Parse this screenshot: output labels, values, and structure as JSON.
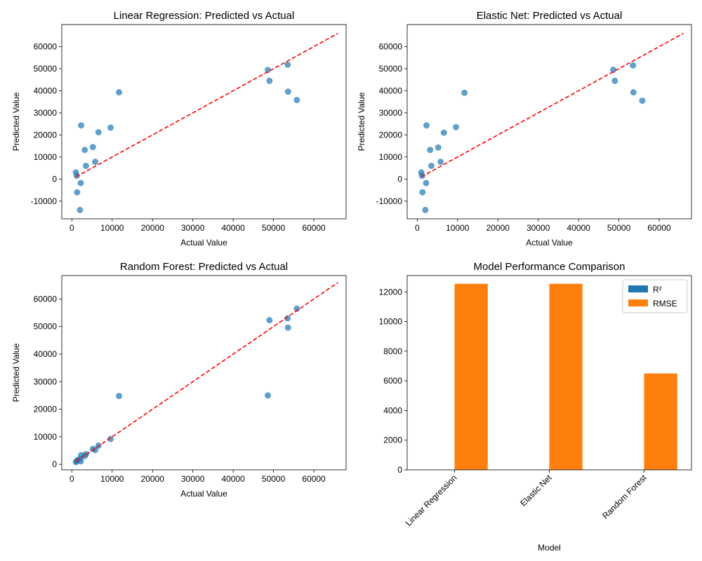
{
  "colors": {
    "points": "#1f77b4",
    "diagonal": "#ff0000",
    "r2": "#1f77b4",
    "rmse": "#ff7f0e"
  },
  "chart_data": [
    {
      "type": "scatter",
      "title": "Linear Regression: Predicted vs Actual",
      "xlabel": "Actual Value",
      "ylabel": "Predicted Value",
      "xlim": [
        -2500,
        68000
      ],
      "ylim": [
        -18000,
        70000
      ],
      "xticks": [
        0,
        10000,
        20000,
        30000,
        40000,
        50000,
        60000
      ],
      "yticks": [
        -10000,
        0,
        10000,
        20000,
        30000,
        40000,
        50000,
        60000
      ],
      "diagonal": [
        1000,
        66000
      ],
      "points": [
        {
          "x": 1000,
          "y": 3000
        },
        {
          "x": 1200,
          "y": 1500
        },
        {
          "x": 1300,
          "y": -6000
        },
        {
          "x": 2000,
          "y": -14000
        },
        {
          "x": 2200,
          "y": -1800
        },
        {
          "x": 2300,
          "y": 24300
        },
        {
          "x": 3200,
          "y": 13200
        },
        {
          "x": 3500,
          "y": 6000
        },
        {
          "x": 5200,
          "y": 14500
        },
        {
          "x": 5800,
          "y": 7800
        },
        {
          "x": 6600,
          "y": 21200
        },
        {
          "x": 9600,
          "y": 23300
        },
        {
          "x": 11700,
          "y": 39300
        },
        {
          "x": 48600,
          "y": 49400
        },
        {
          "x": 49000,
          "y": 44500
        },
        {
          "x": 53500,
          "y": 51800
        },
        {
          "x": 53600,
          "y": 39600
        },
        {
          "x": 55800,
          "y": 35800
        }
      ]
    },
    {
      "type": "scatter",
      "title": "Elastic Net: Predicted vs Actual",
      "xlabel": "Actual Value",
      "ylabel": "Predicted Value",
      "xlim": [
        -2500,
        68000
      ],
      "ylim": [
        -18000,
        70000
      ],
      "xticks": [
        0,
        10000,
        20000,
        30000,
        40000,
        50000,
        60000
      ],
      "yticks": [
        -10000,
        0,
        10000,
        20000,
        30000,
        40000,
        50000,
        60000
      ],
      "diagonal": [
        1000,
        66000
      ],
      "points": [
        {
          "x": 1000,
          "y": 3000
        },
        {
          "x": 1200,
          "y": 1500
        },
        {
          "x": 1300,
          "y": -6000
        },
        {
          "x": 2000,
          "y": -14000
        },
        {
          "x": 2200,
          "y": -1800
        },
        {
          "x": 2300,
          "y": 24300
        },
        {
          "x": 3200,
          "y": 13200
        },
        {
          "x": 3500,
          "y": 6000
        },
        {
          "x": 5200,
          "y": 14300
        },
        {
          "x": 5800,
          "y": 7800
        },
        {
          "x": 6600,
          "y": 21000
        },
        {
          "x": 9600,
          "y": 23500
        },
        {
          "x": 11700,
          "y": 39100
        },
        {
          "x": 48600,
          "y": 49500
        },
        {
          "x": 49000,
          "y": 44500
        },
        {
          "x": 53500,
          "y": 51500
        },
        {
          "x": 53600,
          "y": 39300
        },
        {
          "x": 55800,
          "y": 35500
        }
      ]
    },
    {
      "type": "scatter",
      "title": "Random Forest: Predicted vs Actual",
      "xlabel": "Actual Value",
      "ylabel": "Predicted Value",
      "xlim": [
        -2500,
        68000
      ],
      "ylim": [
        -2000,
        68500
      ],
      "xticks": [
        0,
        10000,
        20000,
        30000,
        40000,
        50000,
        60000
      ],
      "yticks": [
        0,
        10000,
        20000,
        30000,
        40000,
        50000,
        60000
      ],
      "diagonal": [
        1000,
        66000
      ],
      "points": [
        {
          "x": 1000,
          "y": 800
        },
        {
          "x": 1200,
          "y": 1200
        },
        {
          "x": 1400,
          "y": 1500
        },
        {
          "x": 2000,
          "y": 2000
        },
        {
          "x": 2200,
          "y": 1100
        },
        {
          "x": 2300,
          "y": 3300
        },
        {
          "x": 3200,
          "y": 3000
        },
        {
          "x": 3500,
          "y": 3700
        },
        {
          "x": 5200,
          "y": 5600
        },
        {
          "x": 5800,
          "y": 5200
        },
        {
          "x": 6600,
          "y": 6800
        },
        {
          "x": 9600,
          "y": 9200
        },
        {
          "x": 11700,
          "y": 24800
        },
        {
          "x": 48600,
          "y": 25000
        },
        {
          "x": 49000,
          "y": 52300
        },
        {
          "x": 53500,
          "y": 53000
        },
        {
          "x": 53600,
          "y": 49600
        },
        {
          "x": 55800,
          "y": 56500
        }
      ]
    },
    {
      "type": "bar",
      "title": "Model Performance Comparison",
      "xlabel": "Model",
      "ylabel": "",
      "categories": [
        "Linear Regression",
        "Elastic Net",
        "Random Forest"
      ],
      "ylim": [
        0,
        13100
      ],
      "yticks": [
        0,
        2000,
        4000,
        6000,
        8000,
        10000,
        12000
      ],
      "legend_position": "top-right",
      "series": [
        {
          "name": "R²",
          "values": [
            0.43,
            0.43,
            0.85
          ]
        },
        {
          "name": "RMSE",
          "values": [
            12550,
            12550,
            6500
          ]
        }
      ]
    }
  ]
}
